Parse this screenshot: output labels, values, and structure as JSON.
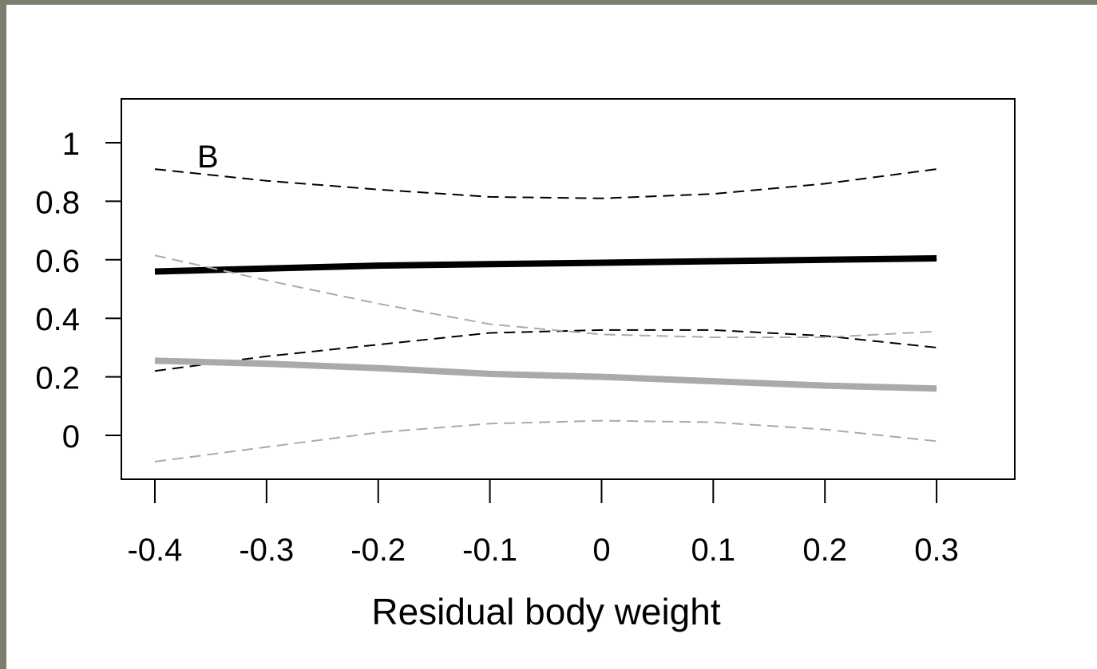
{
  "chart_data": {
    "type": "line",
    "panel_label": "B",
    "xlabel": "Residual body weight",
    "ylabel": "",
    "xlim": [
      -0.43,
      0.37
    ],
    "ylim": [
      -0.15,
      1.15
    ],
    "x_ticks": [
      "-0.4",
      "-0.3",
      "-0.2",
      "-0.1",
      "0",
      "0.1",
      "0.2",
      "0.3"
    ],
    "y_ticks": [
      "0",
      "0.2",
      "0.4",
      "0.6",
      "0.8",
      "1"
    ],
    "grid": false,
    "legend": "none",
    "x": [
      -0.4,
      -0.3,
      -0.2,
      -0.1,
      0.0,
      0.1,
      0.2,
      0.3
    ],
    "series": [
      {
        "style": "thick-solid",
        "color": "#000000",
        "values": [
          0.56,
          0.57,
          0.58,
          0.585,
          0.59,
          0.595,
          0.6,
          0.605
        ]
      },
      {
        "style": "dashed",
        "color": "#000000",
        "values": [
          0.91,
          0.87,
          0.84,
          0.815,
          0.81,
          0.825,
          0.86,
          0.91
        ]
      },
      {
        "style": "dashed",
        "color": "#000000",
        "values": [
          0.22,
          0.27,
          0.31,
          0.35,
          0.36,
          0.36,
          0.34,
          0.3
        ]
      },
      {
        "style": "thick-solid",
        "color": "#aaaaaa",
        "values": [
          0.255,
          0.245,
          0.23,
          0.21,
          0.2,
          0.185,
          0.17,
          0.16
        ]
      },
      {
        "style": "dashed",
        "color": "#aaaaaa",
        "values": [
          0.615,
          0.53,
          0.45,
          0.38,
          0.345,
          0.335,
          0.335,
          0.355
        ]
      },
      {
        "style": "dashed",
        "color": "#aaaaaa",
        "values": [
          -0.09,
          -0.04,
          0.01,
          0.04,
          0.05,
          0.045,
          0.02,
          -0.02
        ]
      }
    ]
  }
}
